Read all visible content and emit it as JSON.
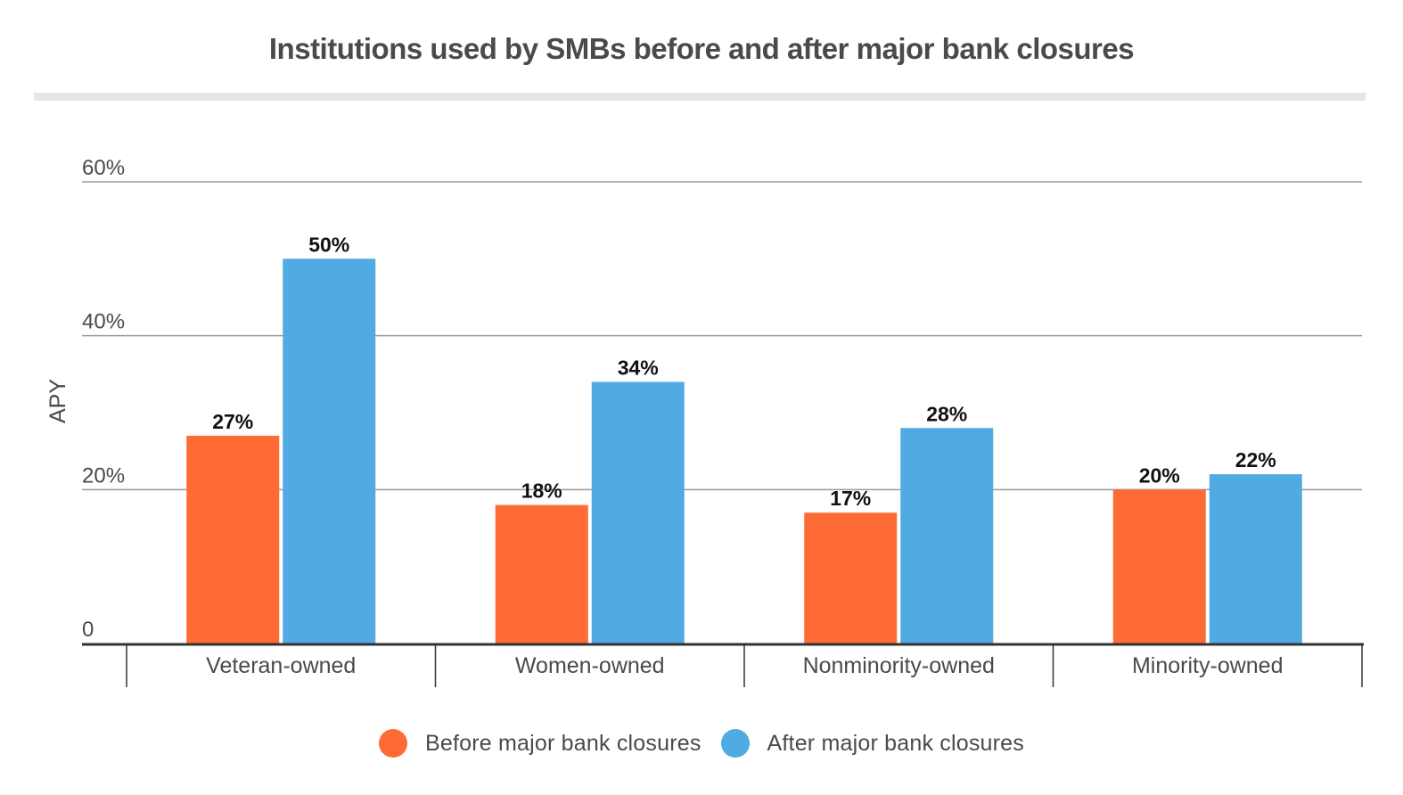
{
  "chart_data": {
    "type": "bar",
    "title": "Institutions used by SMBs before and after major bank closures",
    "ylabel": "APY",
    "xlabel": "",
    "ylim": [
      0,
      60
    ],
    "yticks": [
      {
        "value": 0,
        "label": "0"
      },
      {
        "value": 20,
        "label": "20%"
      },
      {
        "value": 40,
        "label": "40%"
      },
      {
        "value": 60,
        "label": "60%"
      }
    ],
    "categories": [
      "Veteran-owned",
      "Women-owned",
      "Nonminority-owned",
      "Minority-owned"
    ],
    "series": [
      {
        "name": "Before major bank closures",
        "color": "#ff6b35",
        "values": [
          27,
          18,
          17,
          20
        ],
        "labels": [
          "27%",
          "18%",
          "17%",
          "20%"
        ]
      },
      {
        "name": "After major bank closures",
        "color": "#4fabe1",
        "values": [
          50,
          34,
          28,
          22
        ],
        "labels": [
          "50%",
          "34%",
          "28%",
          "22%"
        ]
      }
    ],
    "grid": true,
    "legend_position": "bottom"
  }
}
